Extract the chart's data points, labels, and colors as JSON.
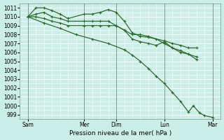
{
  "background_color": "#cceee8",
  "grid_color": "#ffffff",
  "line_color": "#2d6a2d",
  "xlabel": "Pression niveau de la mer( hPa )",
  "ylim": [
    998.5,
    1011.5
  ],
  "yticks": [
    999,
    1000,
    1001,
    1002,
    1003,
    1004,
    1005,
    1006,
    1007,
    1008,
    1009,
    1010,
    1011
  ],
  "xlim": [
    0,
    12.5
  ],
  "x_tick_labels": [
    "Sam",
    "Mer",
    "Dim",
    "Lun",
    "Mar"
  ],
  "x_tick_positions": [
    0.5,
    4.0,
    6.0,
    9.0,
    12.0
  ],
  "vline_positions": [
    0.5,
    4.0,
    6.0,
    9.0,
    12.0
  ],
  "series1_x": [
    0.5,
    1.0,
    1.5,
    2.0,
    2.5,
    3.0,
    4.0,
    4.5,
    5.0,
    5.5,
    6.0,
    6.5,
    7.0,
    7.5,
    8.0,
    9.0,
    9.5,
    10.0,
    10.5,
    11.0
  ],
  "series1_y": [
    1010.0,
    1011.0,
    1011.0,
    1010.7,
    1010.3,
    1009.8,
    1010.3,
    1010.3,
    1010.5,
    1010.8,
    1010.5,
    1009.5,
    1008.2,
    1007.8,
    1007.7,
    1007.3,
    1007.0,
    1006.8,
    1006.5,
    1006.5
  ],
  "series2_x": [
    0.5,
    1.0,
    1.5,
    2.0,
    2.5,
    3.0,
    4.0,
    4.5,
    5.0,
    5.5,
    6.0,
    6.5,
    7.0,
    7.5,
    8.0,
    8.5,
    9.0,
    9.5,
    10.0,
    10.5,
    11.0
  ],
  "series2_y": [
    1010.0,
    1010.3,
    1010.5,
    1010.0,
    1009.8,
    1009.5,
    1009.5,
    1009.5,
    1009.5,
    1009.5,
    1009.0,
    1008.5,
    1007.5,
    1007.2,
    1007.0,
    1006.8,
    1007.2,
    1006.5,
    1006.0,
    1005.8,
    1005.5
  ],
  "series3_x": [
    0.5,
    1.0,
    1.5,
    2.0,
    2.5,
    3.0,
    4.0,
    4.5,
    5.0,
    5.5,
    6.0,
    6.5,
    7.0,
    7.5,
    8.0,
    8.5,
    9.0,
    9.5,
    10.0,
    10.5,
    11.0
  ],
  "series3_y": [
    1010.0,
    1010.0,
    1009.8,
    1009.5,
    1009.3,
    1009.0,
    1009.0,
    1009.0,
    1009.0,
    1009.0,
    1009.0,
    1008.5,
    1008.0,
    1008.0,
    1007.8,
    1007.5,
    1007.0,
    1006.5,
    1006.2,
    1005.8,
    1005.2
  ],
  "series4_x": [
    0.5,
    1.5,
    2.5,
    3.5,
    4.5,
    5.5,
    6.5,
    7.0,
    7.5,
    8.0,
    8.5,
    9.0,
    9.5,
    10.0,
    10.5,
    10.8,
    11.2,
    11.5,
    12.0
  ],
  "series4_y": [
    1010.0,
    1009.3,
    1008.7,
    1008.0,
    1007.5,
    1007.0,
    1006.3,
    1005.7,
    1005.0,
    1004.2,
    1003.3,
    1002.5,
    1001.5,
    1000.5,
    999.3,
    1000.0,
    999.2,
    998.9,
    998.7
  ],
  "ylabel_fontsize": 5.5,
  "xlabel_fontsize": 6.5
}
